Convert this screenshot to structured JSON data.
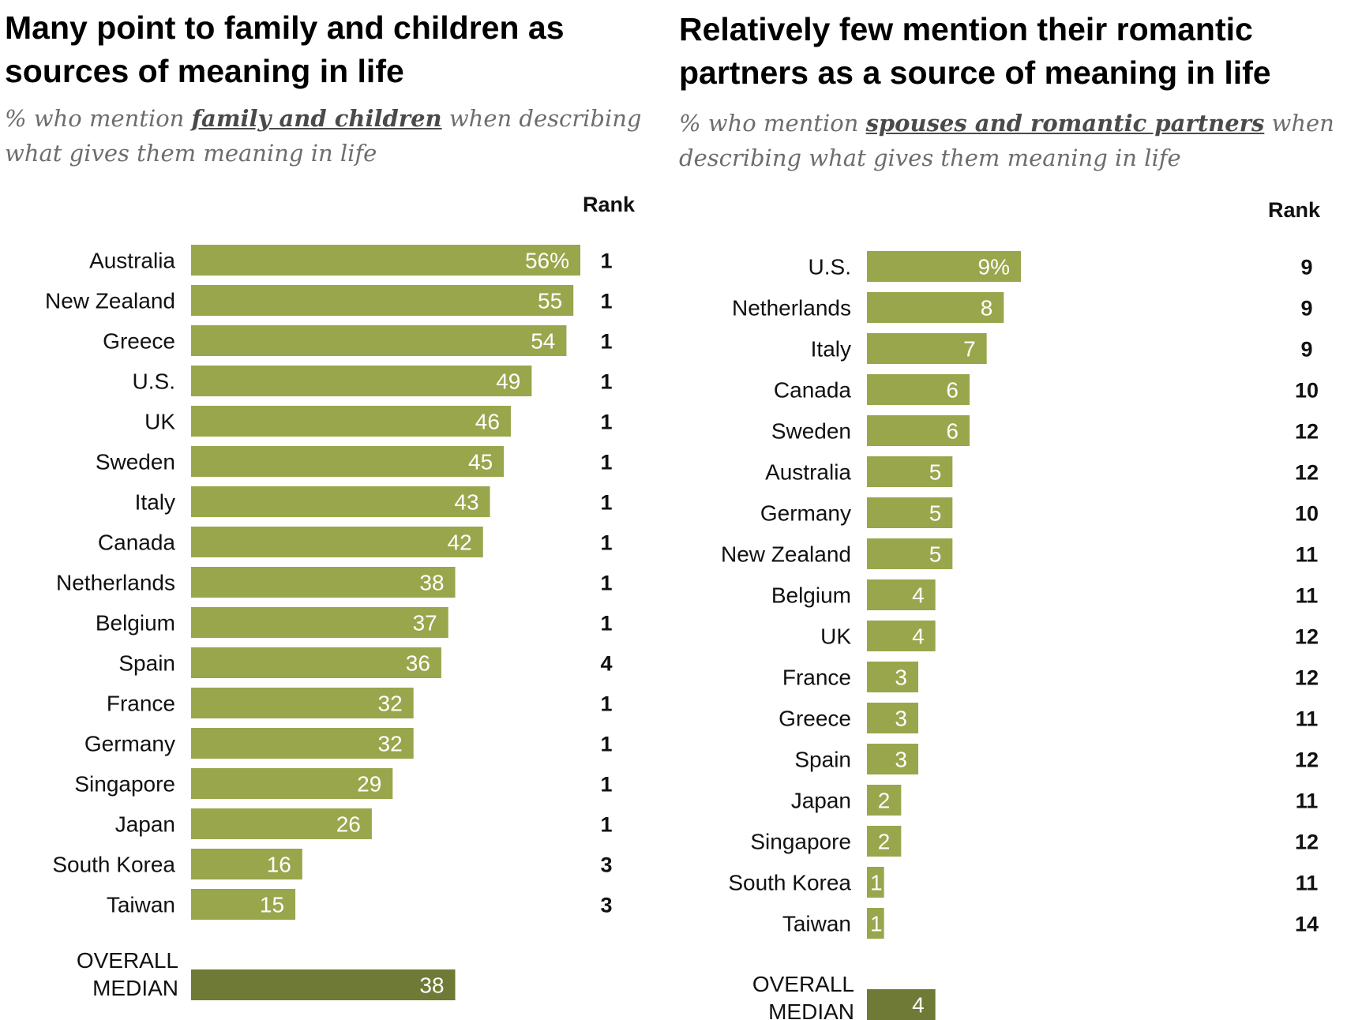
{
  "colors": {
    "bar": "#99a64c",
    "median_bar": "#6e7a35",
    "bar_text": "#ffffff"
  },
  "chart_data": [
    {
      "type": "bar",
      "orientation": "horizontal",
      "title": "Many point to family and children as sources of meaning in life",
      "subtitle": {
        "before": "% who mention ",
        "emphasis": "family and children",
        "after": " when describing what gives them meaning in life"
      },
      "rank_header": "Rank",
      "unit_suffix": "%",
      "xlim": [
        0,
        56
      ],
      "categories": [
        "Australia",
        "New Zealand",
        "Greece",
        "U.S.",
        "UK",
        "Sweden",
        "Italy",
        "Canada",
        "Netherlands",
        "Belgium",
        "Spain",
        "France",
        "Germany",
        "Singapore",
        "Japan",
        "South Korea",
        "Taiwan"
      ],
      "values": [
        56,
        55,
        54,
        49,
        46,
        45,
        43,
        42,
        38,
        37,
        36,
        32,
        32,
        29,
        26,
        16,
        15
      ],
      "ranks": [
        1,
        1,
        1,
        1,
        1,
        1,
        1,
        1,
        1,
        1,
        4,
        1,
        1,
        1,
        1,
        3,
        3
      ],
      "median": {
        "label_lines": [
          "OVERALL",
          "MEDIAN"
        ],
        "value": 38
      }
    },
    {
      "type": "bar",
      "orientation": "horizontal",
      "title": "Relatively few mention their romantic partners as a source of meaning in life",
      "subtitle": {
        "before": "% who mention ",
        "emphasis": "spouses and romantic partners",
        "after": " when describing what gives them meaning in life"
      },
      "rank_header": "Rank",
      "unit_suffix": "%",
      "xlim": [
        0,
        9
      ],
      "categories": [
        "U.S.",
        "Netherlands",
        "Italy",
        "Canada",
        "Sweden",
        "Australia",
        "Germany",
        "New Zealand",
        "Belgium",
        "UK",
        "France",
        "Greece",
        "Spain",
        "Japan",
        "Singapore",
        "South Korea",
        "Taiwan"
      ],
      "values": [
        9,
        8,
        7,
        6,
        6,
        5,
        5,
        5,
        4,
        4,
        3,
        3,
        3,
        2,
        2,
        1,
        1
      ],
      "ranks": [
        9,
        9,
        9,
        10,
        12,
        12,
        10,
        11,
        11,
        12,
        12,
        11,
        12,
        11,
        12,
        11,
        14
      ],
      "median": {
        "label_lines": [
          "OVERALL",
          "MEDIAN"
        ],
        "value": 4
      }
    }
  ]
}
